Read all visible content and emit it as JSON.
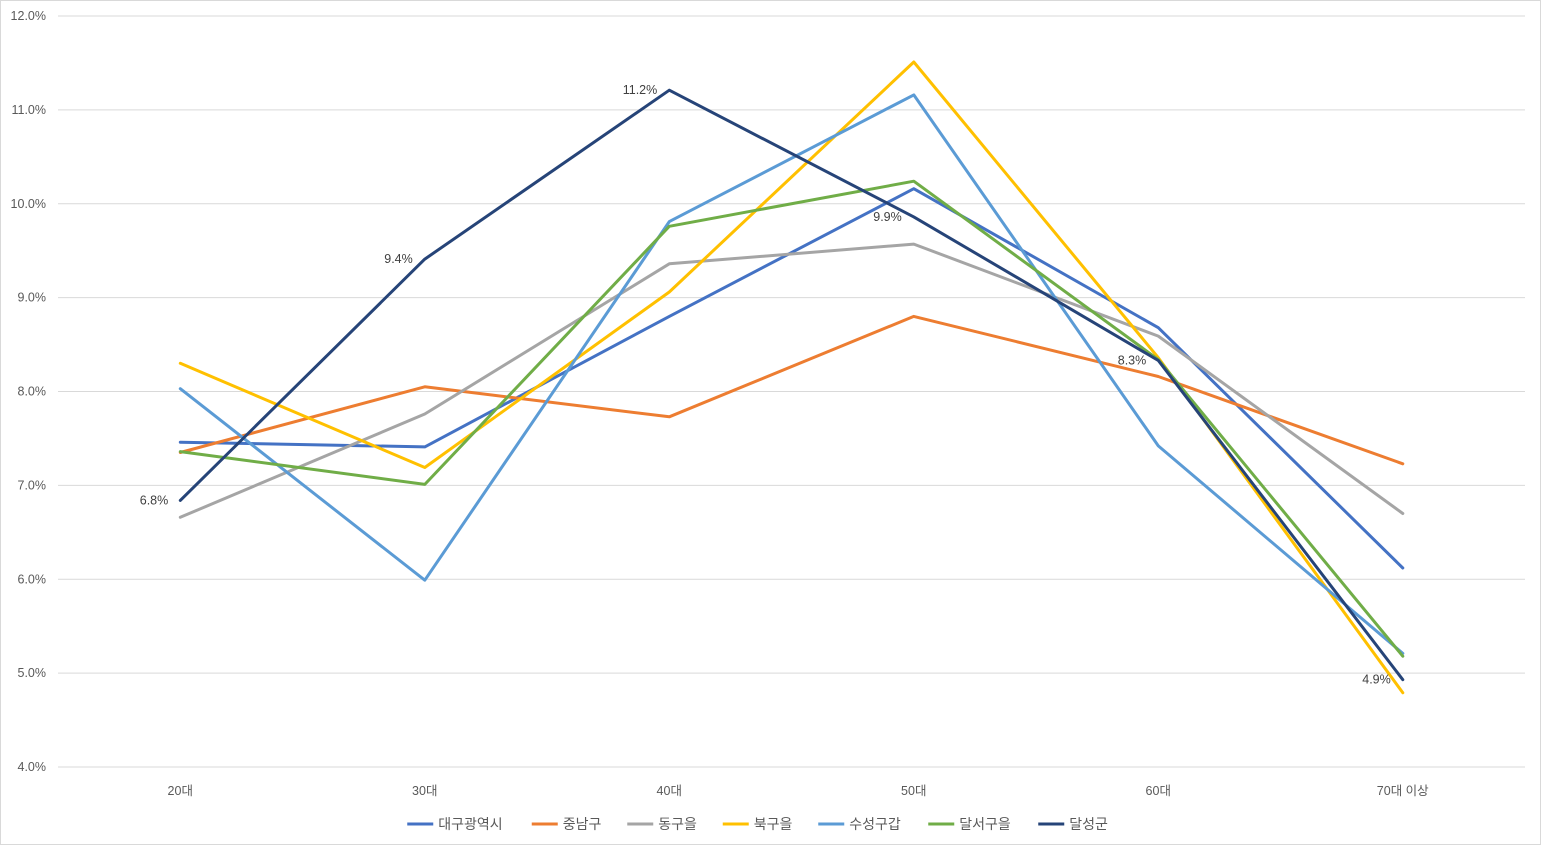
{
  "chart_data": {
    "type": "line",
    "categories": [
      "20대",
      "30대",
      "40대",
      "50대",
      "60대",
      "70대 이상"
    ],
    "ylim": [
      0.04,
      0.12
    ],
    "yticks": [
      0.04,
      0.05,
      0.06,
      0.07,
      0.08,
      0.09,
      0.1,
      0.11,
      0.12
    ],
    "ytick_labels": [
      "4.0%",
      "5.0%",
      "6.0%",
      "7.0%",
      "8.0%",
      "9.0%",
      "10.0%",
      "11.0%",
      "12.0%"
    ],
    "grid": true,
    "legend_position": "bottom",
    "series": [
      {
        "name": "대구광역시",
        "color": "#4472C4",
        "values": [
          0.0746,
          0.0741,
          0.088,
          0.1016,
          0.0868,
          0.0612
        ]
      },
      {
        "name": "중남구",
        "color": "#ED7D31",
        "values": [
          0.0735,
          0.0805,
          0.0773,
          0.088,
          0.0816,
          0.0723
        ]
      },
      {
        "name": "동구을",
        "color": "#A5A5A5",
        "values": [
          0.0666,
          0.0776,
          0.0936,
          0.0957,
          0.0859,
          0.067
        ]
      },
      {
        "name": "북구을",
        "color": "#FFC000",
        "values": [
          0.083,
          0.0719,
          0.0906,
          0.1151,
          0.0836,
          0.0479
        ]
      },
      {
        "name": "수성구갑",
        "color": "#5B9BD5",
        "values": [
          0.0803,
          0.0599,
          0.0981,
          0.1116,
          0.0742,
          0.0521
        ]
      },
      {
        "name": "달서구을",
        "color": "#70AD47",
        "values": [
          0.0736,
          0.0701,
          0.0976,
          0.1024,
          0.0834,
          0.0518
        ]
      },
      {
        "name": "달성군",
        "color": "#264478",
        "values": [
          0.0684,
          0.0941,
          0.1121,
          0.0986,
          0.0833,
          0.0493
        ],
        "data_labels": [
          "6.8%",
          "9.4%",
          "11.2%",
          "9.9%",
          "8.3%",
          "4.9%"
        ]
      }
    ]
  }
}
